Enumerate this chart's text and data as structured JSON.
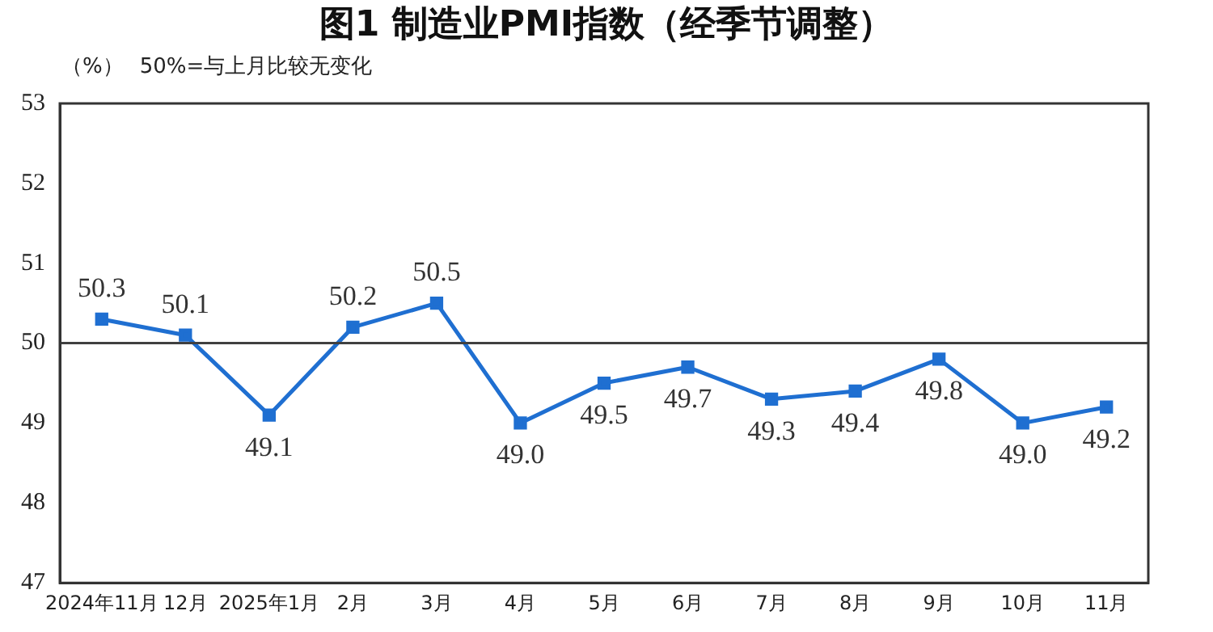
{
  "chart_data": {
    "type": "line",
    "title": "图1  制造业PMI指数（经季节调整）",
    "ylabel": "（%）",
    "annotations": [
      "50%=与上月比较无变化"
    ],
    "categories": [
      "2024年11月",
      "12月",
      "2025年1月",
      "2月",
      "3月",
      "4月",
      "5月",
      "6月",
      "7月",
      "8月",
      "9月",
      "10月",
      "11月"
    ],
    "series": [
      {
        "color": "#1f6fd1",
        "values": [
          50.3,
          50.1,
          49.1,
          50.2,
          50.5,
          49.0,
          49.5,
          49.7,
          49.3,
          49.4,
          49.8,
          49.0,
          49.2
        ],
        "value_labels": [
          "50.3",
          "50.1",
          "49.1",
          "50.2",
          "50.5",
          "49.0",
          "49.5",
          "49.7",
          "49.3",
          "49.4",
          "49.8",
          "49.0",
          "49.2"
        ]
      }
    ],
    "ylim": [
      47,
      53
    ],
    "yticks": [
      47,
      48,
      49,
      50,
      51,
      52,
      53
    ],
    "ref_lines": [
      {
        "axis": "y",
        "value": 50,
        "color": "#404040"
      }
    ],
    "marker": "square",
    "line_style": "solid",
    "grid": false,
    "legend": false
  }
}
